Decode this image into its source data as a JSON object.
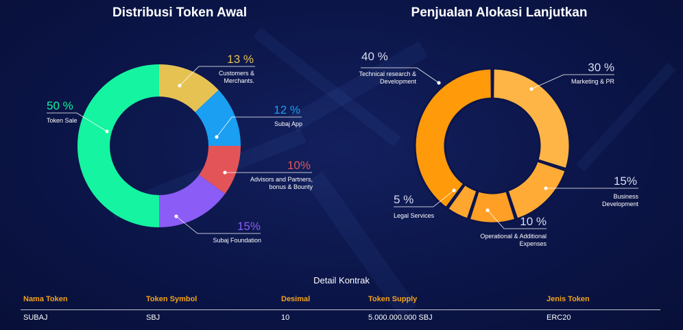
{
  "chart_data": [
    {
      "type": "pie",
      "title": "Distribusi Token Awal",
      "hole": true,
      "categories": [
        "Customers & Merchants.",
        "Subaj App",
        "Advisors and Partners, bonus & Bounty",
        "Subaj Foundation",
        "Token Sale"
      ],
      "values": [
        13,
        12,
        10,
        15,
        50
      ],
      "value_labels": [
        "13 %",
        "12 %",
        "10%",
        "15%",
        "50 %"
      ],
      "label_lines": [
        [
          "Customers &",
          "Merchants."
        ],
        [
          "Subaj App"
        ],
        [
          "Advisors and Partners,",
          "bonus & Bounty"
        ],
        [
          "Subaj Foundation"
        ],
        [
          "Token Sale"
        ]
      ],
      "colors": [
        "#e6c253",
        "#1a9ff2",
        "#e35458",
        "#8b5cf6",
        "#15f4a0"
      ]
    },
    {
      "type": "pie",
      "title": "Penjualan Alokasi Lanjutkan",
      "hole": true,
      "categories": [
        "Marketing & PR",
        "Business Development",
        "Operational & Additional Expenses",
        "Legal Services",
        "Technical research & Development"
      ],
      "values": [
        30,
        15,
        10,
        5,
        40
      ],
      "value_labels": [
        "30 %",
        "15%",
        "10 %",
        "5 %",
        "40 %"
      ],
      "label_lines": [
        [
          "Marketing & PR"
        ],
        [
          "Business",
          "Development"
        ],
        [
          "Operational & Additional",
          "Expenses"
        ],
        [
          "Legal Services"
        ],
        [
          "Technical research &",
          "Development"
        ]
      ],
      "colors": [
        "#ffb545",
        "#ffab36",
        "#ff9f25",
        "#ffa62f",
        "#ff9a0b"
      ]
    }
  ],
  "contract": {
    "title": "Detail Kontrak",
    "headers": {
      "name": "Nama Token",
      "symbol": "Token Symbol",
      "decimals": "Desimal",
      "supply": "Token Supply",
      "type": "Jenis Token"
    },
    "row": {
      "name": "SUBAJ",
      "symbol": "SBJ",
      "decimals": "10",
      "supply": "5.000.000.000 SBJ",
      "type": "ERC20"
    }
  }
}
